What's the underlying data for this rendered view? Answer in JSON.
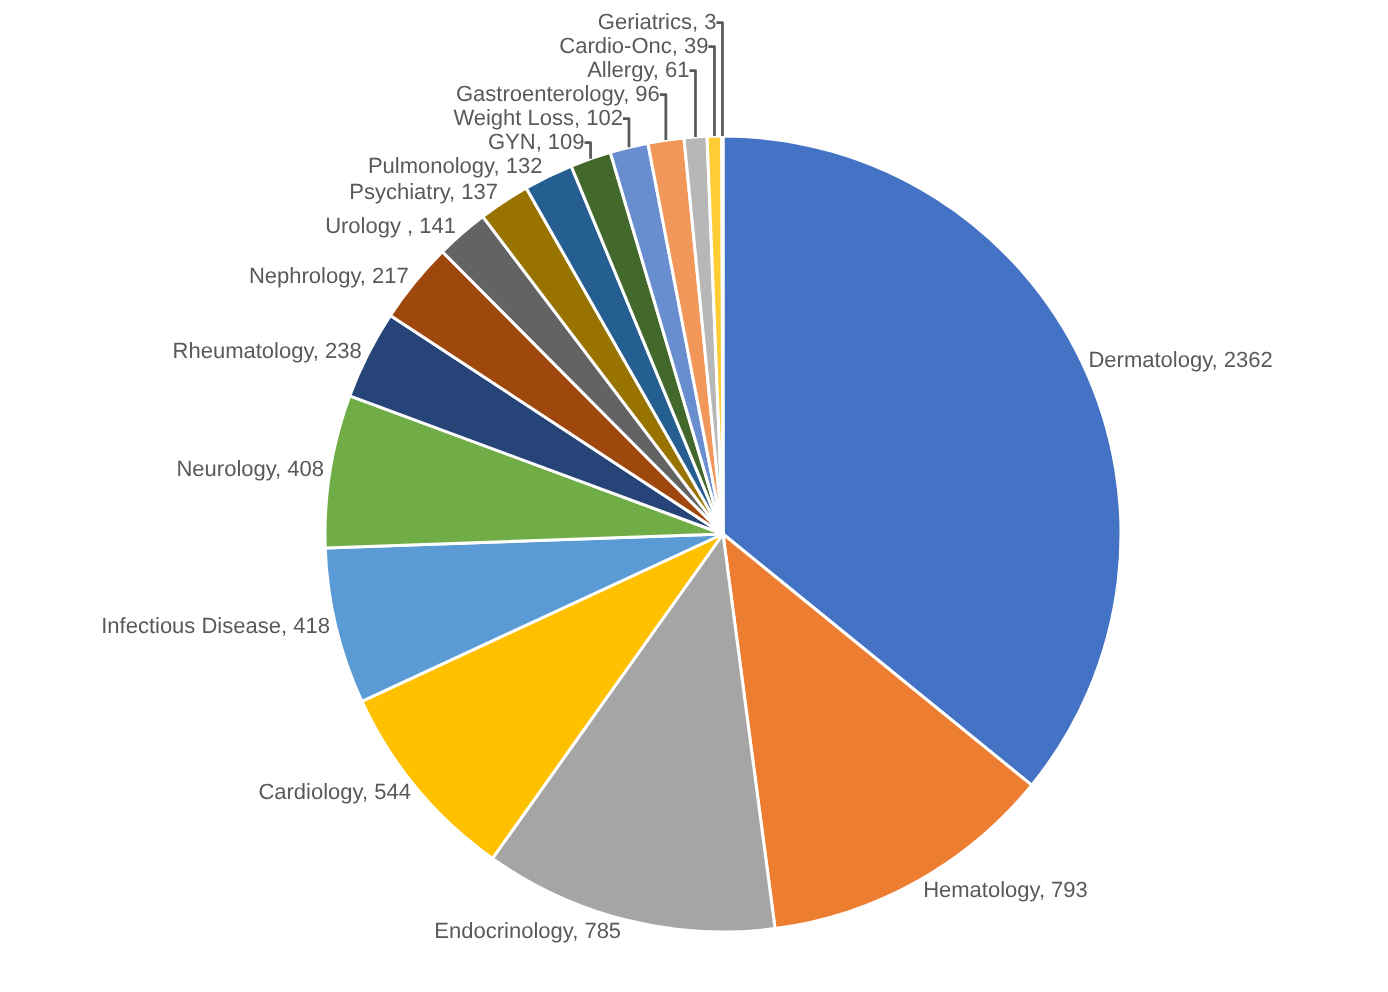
{
  "chart_data": {
    "type": "pie",
    "categories": [
      "Dermatology",
      "Hematology",
      "Endocrinology",
      "Cardiology",
      "Infectious Disease",
      "Neurology",
      "Rheumatology",
      "Nephrology",
      "Urology ",
      "Psychiatry",
      "Pulmonology",
      "GYN",
      "Weight Loss",
      "Gastroenterology",
      "Allergy",
      "Cardio-Onc",
      "Geriatrics"
    ],
    "values": [
      2362,
      793,
      785,
      544,
      418,
      408,
      238,
      217,
      141,
      137,
      132,
      109,
      102,
      96,
      61,
      39,
      3
    ],
    "colors": [
      "#4472c4",
      "#ed7d31",
      "#a5a5a5",
      "#ffc000",
      "#5b9bd5",
      "#70ad47",
      "#264478",
      "#9e480e",
      "#636363",
      "#997300",
      "#255e91",
      "#43682b",
      "#698ed0",
      "#f1975a",
      "#b7b7b7",
      "#ffcd33",
      "#7cafdd"
    ],
    "value_labels": [
      ", 2362",
      ", 793",
      ", 785",
      ", 544",
      ", 418",
      ", 408",
      ", 238",
      ", 217",
      ", 141",
      ", 137",
      ", 132",
      ", 109",
      ", 102",
      ", 96",
      ", 61",
      ", 39",
      ", 3"
    ],
    "legend": false
  }
}
